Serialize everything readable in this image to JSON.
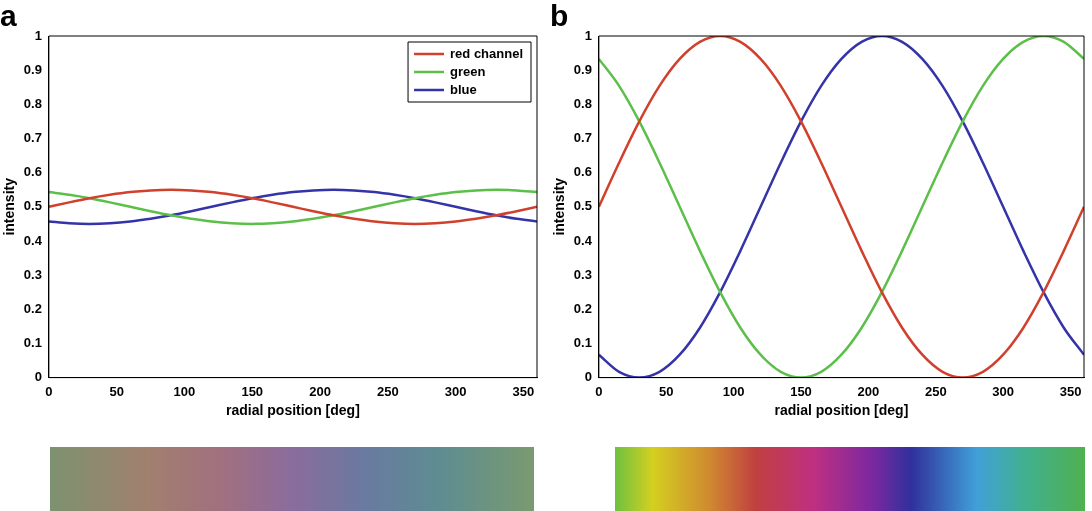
{
  "chart_data": [
    {
      "type": "line",
      "title": "a",
      "xlabel": "radial position [deg]",
      "ylabel": "intensity",
      "x": [
        0,
        15,
        30,
        45,
        60,
        75,
        90,
        105,
        120,
        135,
        150,
        165,
        180,
        195,
        210,
        225,
        240,
        255,
        270,
        285,
        300,
        315,
        330,
        345,
        360
      ],
      "series": [
        {
          "name": "red channel",
          "color": "#d0402c",
          "values": [
            0.5,
            0.513,
            0.525,
            0.535,
            0.543,
            0.548,
            0.55,
            0.548,
            0.543,
            0.535,
            0.525,
            0.513,
            0.5,
            0.487,
            0.475,
            0.465,
            0.457,
            0.452,
            0.45,
            0.452,
            0.457,
            0.465,
            0.475,
            0.487,
            0.5
          ]
        },
        {
          "name": "green",
          "color": "#5cbf4a",
          "values": [
            0.543,
            0.535,
            0.525,
            0.513,
            0.5,
            0.487,
            0.475,
            0.465,
            0.457,
            0.452,
            0.45,
            0.452,
            0.457,
            0.465,
            0.475,
            0.487,
            0.5,
            0.513,
            0.525,
            0.535,
            0.543,
            0.548,
            0.55,
            0.548,
            0.543
          ]
        },
        {
          "name": "blue",
          "color": "#3434a8",
          "values": [
            0.457,
            0.452,
            0.45,
            0.452,
            0.457,
            0.465,
            0.475,
            0.487,
            0.5,
            0.513,
            0.525,
            0.535,
            0.543,
            0.548,
            0.55,
            0.548,
            0.543,
            0.535,
            0.525,
            0.513,
            0.5,
            0.487,
            0.475,
            0.465,
            0.457
          ]
        }
      ],
      "xlim": [
        0,
        360
      ],
      "xticks": [
        0,
        50,
        100,
        150,
        200,
        250,
        300,
        350
      ],
      "ylim": [
        0,
        1
      ],
      "yticks": [
        0,
        0.1,
        0.2,
        0.3,
        0.4,
        0.5,
        0.6,
        0.7,
        0.8,
        0.9,
        1
      ],
      "legend": "top right",
      "grid": false,
      "marker": "none",
      "line_style": "solid"
    },
    {
      "type": "line",
      "title": "b",
      "xlabel": "radial position [deg]",
      "ylabel": "intensity",
      "x": [
        0,
        15,
        30,
        45,
        60,
        75,
        90,
        105,
        120,
        135,
        150,
        165,
        180,
        195,
        210,
        225,
        240,
        255,
        270,
        285,
        300,
        315,
        330,
        345,
        360
      ],
      "series": [
        {
          "color": "#d0402c",
          "values": [
            0.5,
            0.629,
            0.75,
            0.854,
            0.933,
            0.983,
            1,
            0.983,
            0.933,
            0.854,
            0.75,
            0.629,
            0.5,
            0.371,
            0.25,
            0.146,
            0.067,
            0.017,
            0,
            0.017,
            0.067,
            0.146,
            0.25,
            0.371,
            0.5
          ]
        },
        {
          "color": "#5cbf4a",
          "values": [
            0.933,
            0.854,
            0.75,
            0.629,
            0.5,
            0.371,
            0.25,
            0.146,
            0.067,
            0.017,
            0,
            0.017,
            0.067,
            0.146,
            0.25,
            0.371,
            0.5,
            0.629,
            0.75,
            0.854,
            0.933,
            0.983,
            1,
            0.983,
            0.933
          ]
        },
        {
          "color": "#3434a8",
          "values": [
            0.067,
            0.017,
            0,
            0.017,
            0.067,
            0.146,
            0.25,
            0.371,
            0.5,
            0.629,
            0.75,
            0.854,
            0.933,
            0.983,
            1,
            0.983,
            0.933,
            0.854,
            0.75,
            0.629,
            0.5,
            0.371,
            0.25,
            0.146,
            0.067
          ]
        }
      ],
      "xlim": [
        0,
        360
      ],
      "xticks": [
        0,
        50,
        100,
        150,
        200,
        250,
        300,
        350
      ],
      "ylim": [
        0,
        1
      ],
      "yticks": [
        0,
        0.1,
        0.2,
        0.3,
        0.4,
        0.5,
        0.6,
        0.7,
        0.8,
        0.9,
        1
      ],
      "grid": false,
      "marker": "none",
      "line_style": "solid"
    }
  ]
}
